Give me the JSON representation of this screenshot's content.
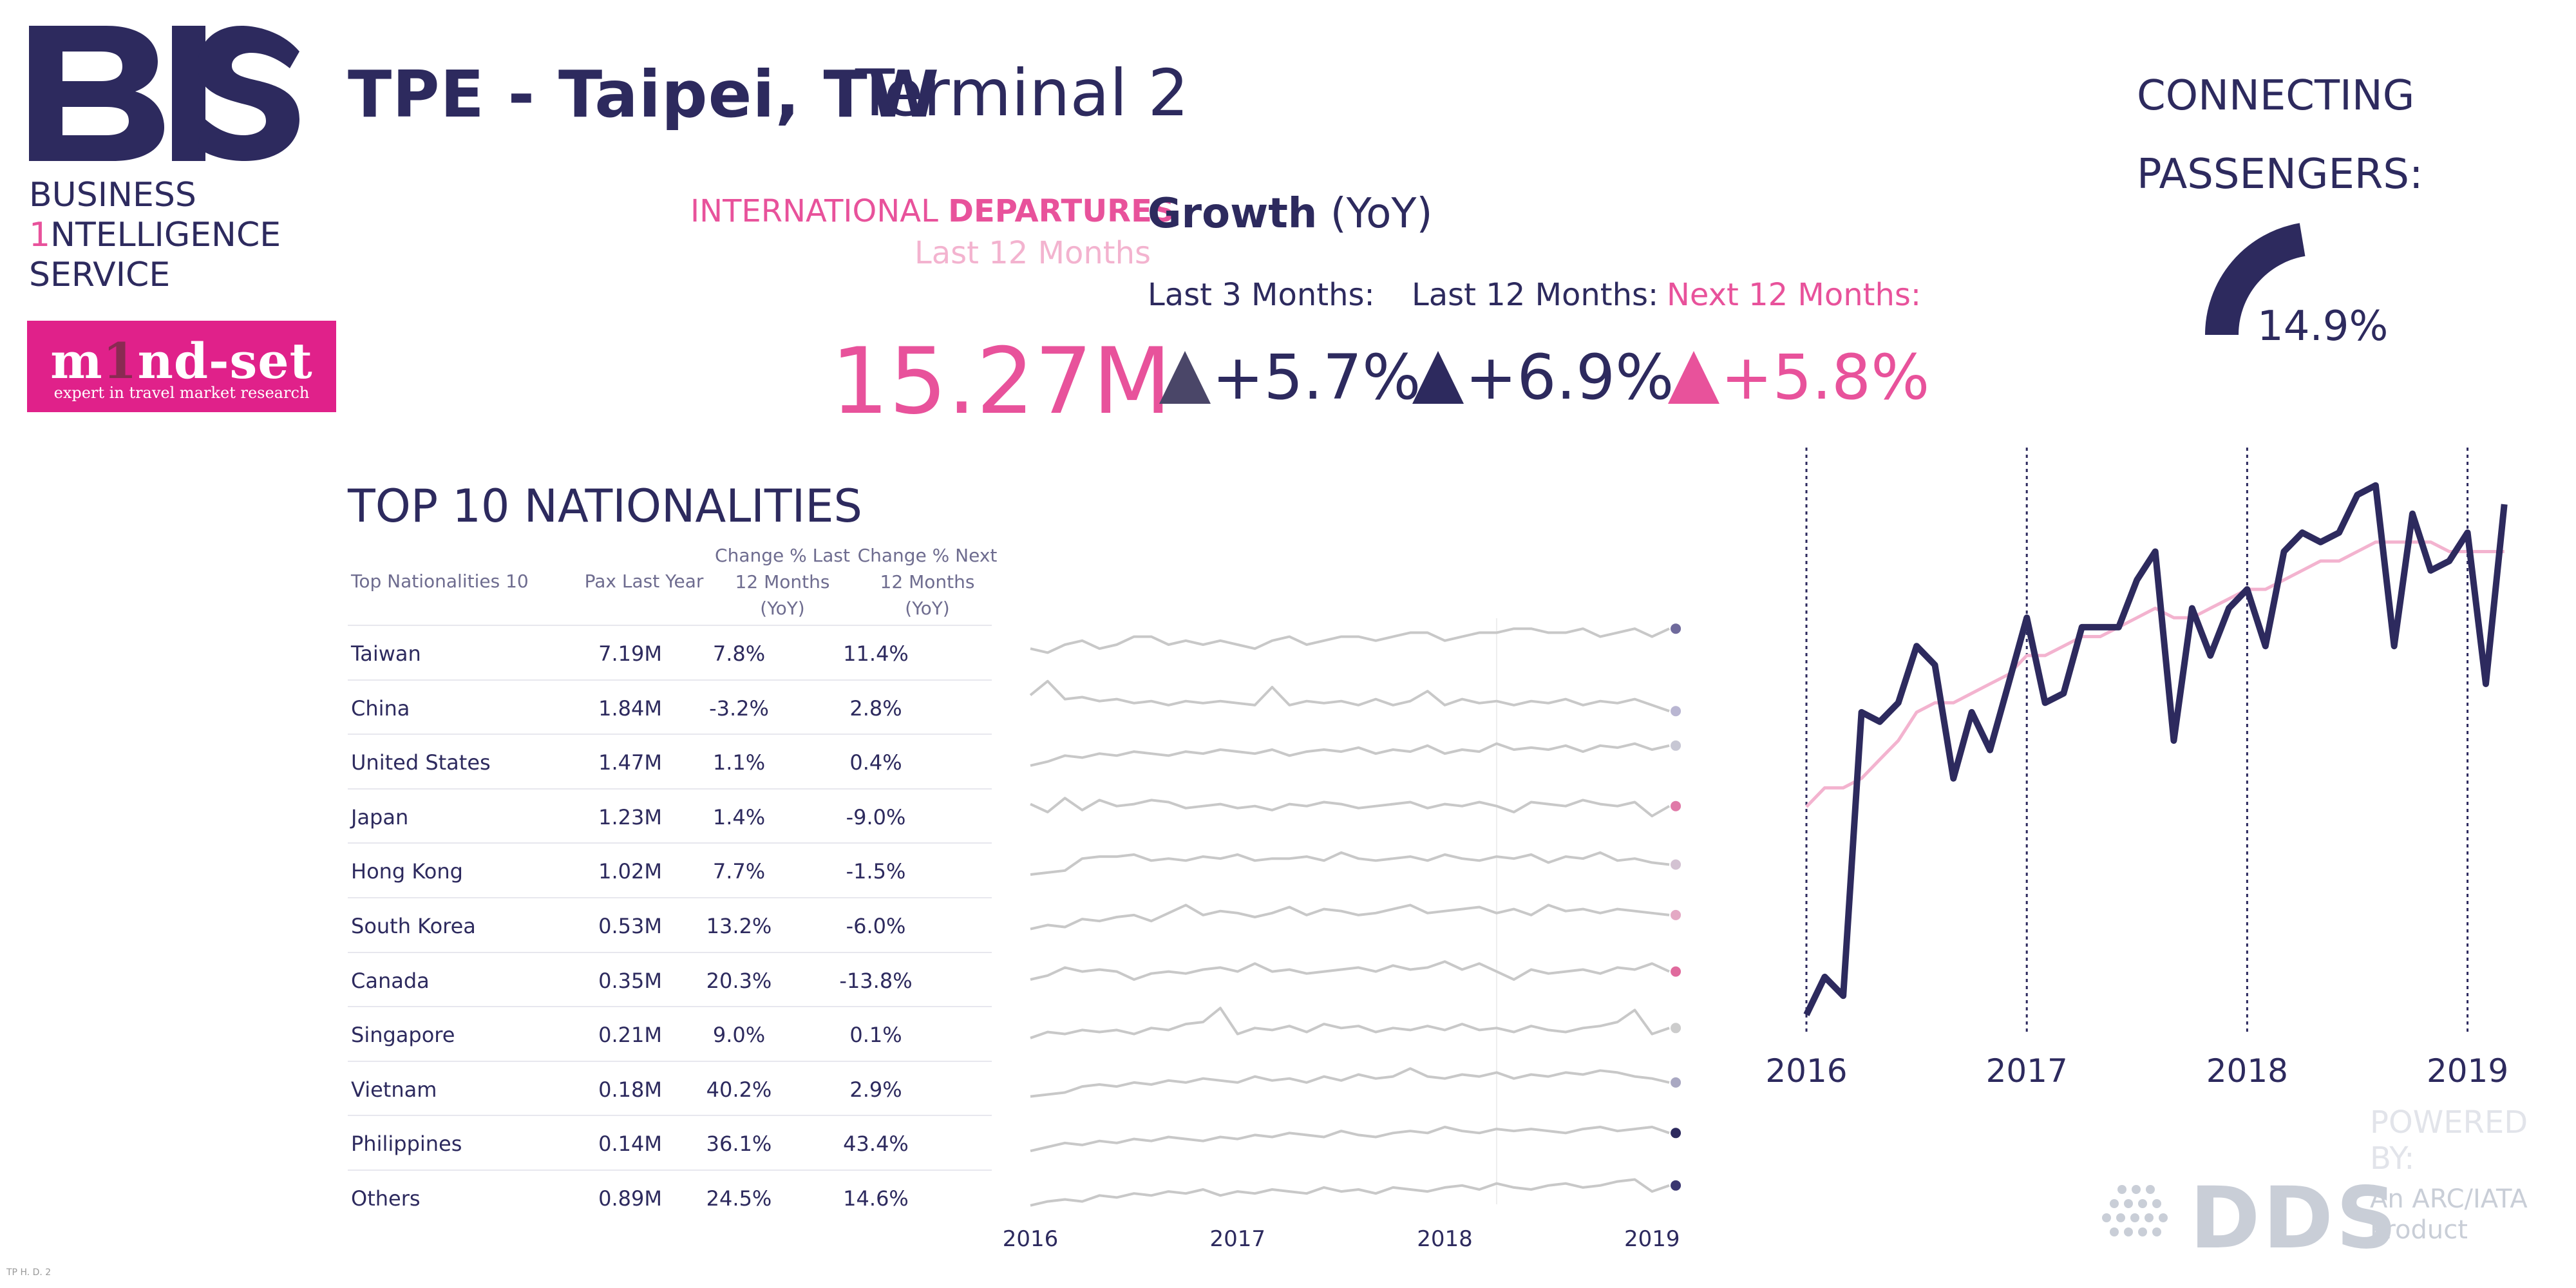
{
  "brand": {
    "logo_text": "BIS",
    "lines": [
      "BUSINESS",
      "1NTELLIGENCE",
      "SERVICE"
    ],
    "line1": "BUSINESS",
    "line2_digit": "1",
    "line2_rest": "NTELLIGENCE",
    "line3": "SERVICE",
    "partner_name_1": "m",
    "partner_name_digit": "1",
    "partner_name_2": "nd-set",
    "partner_tagline": "expert in travel market research"
  },
  "header": {
    "airport": "TPE - Taipei, TW",
    "terminal": "Terminal 2"
  },
  "kpi": {
    "label_international": "INTERNATIONAL",
    "label_departures": "DEPARTURES",
    "label_period": "Last 12 Months",
    "growth_word": "Growth",
    "growth_suffix": "(YoY)",
    "pax_value": "15.27M",
    "last3_label": "Last 3 Months:",
    "last12_label": "Last 12 Months:",
    "next12_label": "Next 12 Months:",
    "last3_value": "+5.7%",
    "last12_value": "+6.9%",
    "next12_value": "+5.8%"
  },
  "connecting": {
    "label_line1": "CONNECTING",
    "label_line2": "PASSENGERS:",
    "value": "14.9%",
    "fraction": 0.149,
    "color": "#2d2a5e"
  },
  "nationalities": {
    "title": "TOP 10 NATIONALITIES",
    "headers": {
      "name": "Top Nationalities 10",
      "pax": "Pax Last Year",
      "chg_last_1": "Change % Last",
      "chg_last_2": "12 Months",
      "chg_last_3": "(YoY)",
      "chg_next_1": "Change % Next",
      "chg_next_2": "12 Months",
      "chg_next_3": "(YoY)"
    },
    "rows": [
      {
        "name": "Taiwan",
        "pax": "7.19M",
        "chg_last": "7.8%",
        "chg_next": "11.4%"
      },
      {
        "name": "China",
        "pax": "1.84M",
        "chg_last": "-3.2%",
        "chg_next": "2.8%"
      },
      {
        "name": "United States",
        "pax": "1.47M",
        "chg_last": "1.1%",
        "chg_next": "0.4%"
      },
      {
        "name": "Japan",
        "pax": "1.23M",
        "chg_last": "1.4%",
        "chg_next": "-9.0%"
      },
      {
        "name": "Hong Kong",
        "pax": "1.02M",
        "chg_last": "7.7%",
        "chg_next": "-1.5%"
      },
      {
        "name": "South Korea",
        "pax": "0.53M",
        "chg_last": "13.2%",
        "chg_next": "-6.0%"
      },
      {
        "name": "Canada",
        "pax": "0.35M",
        "chg_last": "20.3%",
        "chg_next": "-13.8%"
      },
      {
        "name": "Singapore",
        "pax": "0.21M",
        "chg_last": "9.0%",
        "chg_next": "0.1%"
      },
      {
        "name": "Vietnam",
        "pax": "0.18M",
        "chg_last": "40.2%",
        "chg_next": "2.9%"
      },
      {
        "name": "Philippines",
        "pax": "0.14M",
        "chg_last": "36.1%",
        "chg_next": "43.4%"
      },
      {
        "name": "Others",
        "pax": "0.89M",
        "chg_last": "24.5%",
        "chg_next": "14.6%"
      }
    ]
  },
  "colors": {
    "navy": "#2d2a5e",
    "pink": "#e8529b",
    "light_pink": "#f3b3cf",
    "gray_line": "#c8c8c8",
    "dot_colors": [
      "#6f6a9c",
      "#b9b6d2",
      "#c7c7d4",
      "#e07aa8",
      "#d3c2d2",
      "#e4a9c4",
      "#e06a9d",
      "#cccccc",
      "#a9a8c2",
      "#2d2a5e",
      "#3a3670"
    ]
  },
  "branding_footer": {
    "powered_by": "POWERED BY:",
    "dds": "DDS",
    "dds_sub_1": "An ARC/IATA",
    "dds_sub_2": "Product",
    "footnote": "TP    H.   D.   2"
  },
  "chart_data": [
    {
      "type": "line",
      "title": "",
      "x_ticks": [
        "2016",
        "2017",
        "2018",
        "2019"
      ],
      "x_tick_positions": [
        2016,
        2017,
        2018,
        2019
      ],
      "x_range": [
        2016,
        2019.2
      ],
      "series": [
        {
          "color": "#2d2a5e",
          "x": [
            2016.0,
            2016.083,
            2016.167,
            2016.25,
            2016.333,
            2016.417,
            2016.5,
            2016.583,
            2016.667,
            2016.75,
            2016.833,
            2016.917,
            2017.0,
            2017.083,
            2017.167,
            2017.25,
            2017.333,
            2017.417,
            2017.5,
            2017.583,
            2017.667,
            2017.75,
            2017.833,
            2017.917,
            2018.0,
            2018.083,
            2018.167,
            2018.25,
            2018.333,
            2018.417,
            2018.5,
            2018.583,
            2018.667,
            2018.75,
            2018.833,
            2018.917,
            2019.0,
            2019.083,
            2019.167
          ],
          "y": [
            1.0,
            1.04,
            1.02,
            1.32,
            1.31,
            1.33,
            1.39,
            1.37,
            1.25,
            1.32,
            1.28,
            1.35,
            1.42,
            1.33,
            1.34,
            1.41,
            1.41,
            1.41,
            1.46,
            1.49,
            1.29,
            1.43,
            1.38,
            1.43,
            1.45,
            1.39,
            1.49,
            1.51,
            1.5,
            1.51,
            1.55,
            1.56,
            1.39,
            1.53,
            1.47,
            1.48,
            1.51,
            1.35,
            1.54
          ]
        },
        {
          "color": "#f3b3cf",
          "x": [
            2016.0,
            2016.083,
            2016.167,
            2016.25,
            2016.333,
            2016.417,
            2016.5,
            2016.583,
            2016.667,
            2016.75,
            2016.833,
            2016.917,
            2017.0,
            2017.083,
            2017.167,
            2017.25,
            2017.333,
            2017.417,
            2017.5,
            2017.583,
            2017.667,
            2017.75,
            2017.833,
            2017.917,
            2018.0,
            2018.083,
            2018.167,
            2018.25,
            2018.333,
            2018.417,
            2018.5,
            2018.583,
            2018.667,
            2018.75,
            2018.833,
            2018.917,
            2019.0,
            2019.083,
            2019.167
          ],
          "y": [
            1.22,
            1.24,
            1.24,
            1.25,
            1.27,
            1.29,
            1.32,
            1.33,
            1.33,
            1.34,
            1.35,
            1.36,
            1.38,
            1.38,
            1.39,
            1.4,
            1.4,
            1.41,
            1.42,
            1.43,
            1.42,
            1.42,
            1.43,
            1.44,
            1.45,
            1.45,
            1.46,
            1.47,
            1.48,
            1.48,
            1.49,
            1.5,
            1.5,
            1.5,
            1.5,
            1.49,
            1.49,
            1.49,
            1.49
          ]
        }
      ],
      "ylim": [
        0.98,
        1.6
      ]
    },
    {
      "type": "line",
      "title": "",
      "x_ticks": [
        "2016",
        "2017",
        "2018",
        "2019"
      ],
      "x_tick_positions": [
        2016,
        2017,
        2018,
        2019
      ],
      "x_range": [
        2016,
        2019.17
      ],
      "series": [
        {
          "name": "Taiwan",
          "x_start": 2016,
          "x_step": 0.08333,
          "y": [
            0.4,
            0.3,
            0.5,
            0.6,
            0.4,
            0.5,
            0.7,
            0.7,
            0.5,
            0.6,
            0.5,
            0.6,
            0.5,
            0.4,
            0.6,
            0.7,
            0.5,
            0.6,
            0.7,
            0.7,
            0.6,
            0.7,
            0.8,
            0.8,
            0.6,
            0.7,
            0.8,
            0.8,
            0.9,
            0.9,
            0.8,
            0.8,
            0.9,
            0.7,
            0.8,
            0.9,
            0.7,
            0.9
          ]
        },
        {
          "name": "China",
          "x_start": 2016,
          "x_step": 0.08333,
          "y": [
            0.6,
            0.95,
            0.5,
            0.55,
            0.45,
            0.5,
            0.4,
            0.45,
            0.35,
            0.45,
            0.4,
            0.45,
            0.4,
            0.35,
            0.8,
            0.35,
            0.45,
            0.4,
            0.45,
            0.35,
            0.5,
            0.35,
            0.45,
            0.7,
            0.35,
            0.5,
            0.4,
            0.45,
            0.35,
            0.45,
            0.4,
            0.5,
            0.35,
            0.45,
            0.4,
            0.5,
            0.35,
            0.2
          ]
        },
        {
          "name": "United States",
          "x_start": 2016,
          "x_step": 0.08333,
          "y": [
            0.2,
            0.3,
            0.45,
            0.4,
            0.5,
            0.45,
            0.55,
            0.5,
            0.45,
            0.55,
            0.5,
            0.6,
            0.55,
            0.5,
            0.6,
            0.45,
            0.55,
            0.6,
            0.55,
            0.65,
            0.5,
            0.6,
            0.55,
            0.7,
            0.5,
            0.6,
            0.55,
            0.75,
            0.6,
            0.65,
            0.6,
            0.7,
            0.55,
            0.7,
            0.65,
            0.75,
            0.6,
            0.7
          ]
        },
        {
          "name": "Japan",
          "x_start": 2016,
          "x_step": 0.08333,
          "y": [
            0.6,
            0.4,
            0.75,
            0.45,
            0.7,
            0.55,
            0.6,
            0.7,
            0.65,
            0.5,
            0.55,
            0.6,
            0.5,
            0.55,
            0.45,
            0.6,
            0.55,
            0.65,
            0.6,
            0.5,
            0.55,
            0.6,
            0.65,
            0.5,
            0.6,
            0.55,
            0.65,
            0.55,
            0.4,
            0.65,
            0.6,
            0.55,
            0.7,
            0.6,
            0.55,
            0.65,
            0.3,
            0.55
          ]
        },
        {
          "name": "Hong Kong",
          "x_start": 2016,
          "x_step": 0.08333,
          "y": [
            0.2,
            0.25,
            0.3,
            0.6,
            0.65,
            0.65,
            0.7,
            0.55,
            0.6,
            0.55,
            0.65,
            0.6,
            0.7,
            0.55,
            0.6,
            0.6,
            0.65,
            0.55,
            0.75,
            0.6,
            0.55,
            0.6,
            0.65,
            0.55,
            0.7,
            0.6,
            0.55,
            0.65,
            0.6,
            0.7,
            0.5,
            0.65,
            0.6,
            0.75,
            0.55,
            0.6,
            0.5,
            0.45
          ]
        },
        {
          "name": "South Korea",
          "x_start": 2016,
          "x_step": 0.08333,
          "y": [
            0.2,
            0.3,
            0.25,
            0.45,
            0.4,
            0.5,
            0.55,
            0.4,
            0.6,
            0.8,
            0.55,
            0.65,
            0.6,
            0.5,
            0.6,
            0.75,
            0.55,
            0.7,
            0.65,
            0.55,
            0.6,
            0.7,
            0.8,
            0.6,
            0.65,
            0.7,
            0.75,
            0.6,
            0.7,
            0.55,
            0.8,
            0.65,
            0.7,
            0.6,
            0.7,
            0.65,
            0.6,
            0.55
          ]
        },
        {
          "name": "Canada",
          "x_start": 2016,
          "x_step": 0.08333,
          "y": [
            0.3,
            0.4,
            0.6,
            0.5,
            0.55,
            0.5,
            0.3,
            0.45,
            0.5,
            0.45,
            0.55,
            0.6,
            0.5,
            0.7,
            0.5,
            0.55,
            0.45,
            0.5,
            0.55,
            0.6,
            0.5,
            0.65,
            0.55,
            0.6,
            0.75,
            0.55,
            0.7,
            0.5,
            0.3,
            0.55,
            0.45,
            0.5,
            0.55,
            0.45,
            0.6,
            0.55,
            0.7,
            0.5
          ]
        },
        {
          "name": "Singapore",
          "x_start": 2016,
          "x_step": 0.08333,
          "y": [
            0.2,
            0.35,
            0.3,
            0.4,
            0.35,
            0.4,
            0.3,
            0.45,
            0.4,
            0.55,
            0.6,
            0.95,
            0.3,
            0.45,
            0.4,
            0.5,
            0.35,
            0.55,
            0.45,
            0.5,
            0.35,
            0.45,
            0.4,
            0.5,
            0.4,
            0.55,
            0.4,
            0.45,
            0.35,
            0.5,
            0.4,
            0.35,
            0.45,
            0.5,
            0.6,
            0.9,
            0.3,
            0.45
          ]
        },
        {
          "name": "Vietnam",
          "x_start": 2016,
          "x_step": 0.08333,
          "y": [
            0.1,
            0.15,
            0.2,
            0.35,
            0.4,
            0.35,
            0.45,
            0.4,
            0.5,
            0.45,
            0.55,
            0.5,
            0.45,
            0.6,
            0.5,
            0.55,
            0.45,
            0.6,
            0.5,
            0.65,
            0.55,
            0.6,
            0.8,
            0.6,
            0.55,
            0.65,
            0.6,
            0.7,
            0.55,
            0.65,
            0.6,
            0.7,
            0.65,
            0.75,
            0.7,
            0.6,
            0.55,
            0.45
          ]
        },
        {
          "name": "Philippines",
          "x_start": 2016,
          "x_step": 0.08333,
          "y": [
            0.1,
            0.2,
            0.3,
            0.25,
            0.35,
            0.3,
            0.4,
            0.35,
            0.45,
            0.4,
            0.35,
            0.45,
            0.4,
            0.5,
            0.45,
            0.55,
            0.5,
            0.45,
            0.6,
            0.5,
            0.45,
            0.55,
            0.6,
            0.55,
            0.7,
            0.6,
            0.55,
            0.65,
            0.6,
            0.65,
            0.6,
            0.55,
            0.65,
            0.7,
            0.6,
            0.65,
            0.7,
            0.55
          ]
        },
        {
          "name": "Others",
          "x_start": 2016,
          "x_step": 0.08333,
          "y": [
            0.1,
            0.2,
            0.25,
            0.2,
            0.35,
            0.3,
            0.4,
            0.35,
            0.45,
            0.4,
            0.5,
            0.35,
            0.45,
            0.4,
            0.5,
            0.45,
            0.4,
            0.55,
            0.45,
            0.5,
            0.4,
            0.55,
            0.5,
            0.45,
            0.55,
            0.6,
            0.5,
            0.65,
            0.55,
            0.5,
            0.6,
            0.65,
            0.55,
            0.6,
            0.7,
            0.75,
            0.45,
            0.6
          ]
        }
      ],
      "ylim": [
        0,
        1
      ]
    }
  ]
}
